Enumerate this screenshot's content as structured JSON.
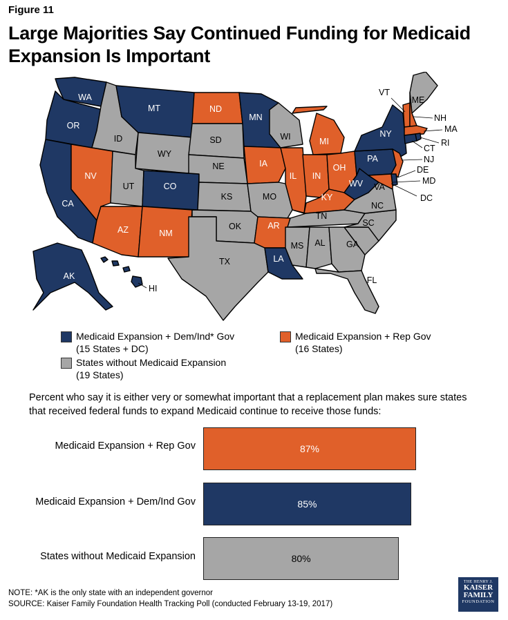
{
  "figure_label": "Figure 11",
  "title_line1": "Large Majorities Say Continued Funding for Medicaid",
  "title_line2": "Expansion Is Important",
  "colors": {
    "dem_ind": "#1f3864",
    "rep": "#e0602a",
    "non_expansion": "#a6a6a6"
  },
  "map": {
    "state_labels": [
      "WA",
      "OR",
      "CA",
      "MT",
      "ID",
      "NV",
      "WY",
      "UT",
      "AZ",
      "CO",
      "NM",
      "ND",
      "SD",
      "NE",
      "KS",
      "OK",
      "TX",
      "MN",
      "IA",
      "MO",
      "AR",
      "LA",
      "WI",
      "IL",
      "MI",
      "IN",
      "KY",
      "TN",
      "MS",
      "AL",
      "OH",
      "WV",
      "GA",
      "FL",
      "SC",
      "NC",
      "VA",
      "PA",
      "NY",
      "ME",
      "VT",
      "NH",
      "MA",
      "RI",
      "CT",
      "NJ",
      "DE",
      "MD",
      "DC",
      "AK",
      "HI"
    ]
  },
  "legend": {
    "dem_line1": "Medicaid Expansion + Dem/Ind* Gov",
    "dem_line2": "(15 States + DC)",
    "rep_line1": "Medicaid Expansion + Rep Gov",
    "rep_line2": "(16 States)",
    "non_line1": "States without Medicaid Expansion",
    "non_line2": "(19 States)"
  },
  "subtitle_line1": "Percent who say it is either very or somewhat important that a replacement plan makes sure states",
  "subtitle_line2": "that received federal funds to expand Medicaid continue to receive those funds:",
  "chart_data": {
    "type": "bar",
    "orientation": "horizontal",
    "categories": [
      "Medicaid Expansion + Rep Gov",
      "Medicaid Expansion + Dem/Ind Gov",
      "States without Medicaid Expansion"
    ],
    "values": [
      87,
      85,
      80
    ],
    "value_labels": [
      "87%",
      "85%",
      "80%"
    ],
    "bar_colors": [
      "#e0602a",
      "#1f3864",
      "#a6a6a6"
    ],
    "xlim": [
      0,
      100
    ]
  },
  "note": "NOTE: *AK is the only state with an independent governor",
  "source": "SOURCE: Kaiser Family Foundation Health Tracking Poll (conducted February 13-19, 2017)",
  "logo": {
    "line1": "THE HENRY J.",
    "line2": "KAISER",
    "line3": "FAMILY",
    "line4": "FOUNDATION"
  }
}
